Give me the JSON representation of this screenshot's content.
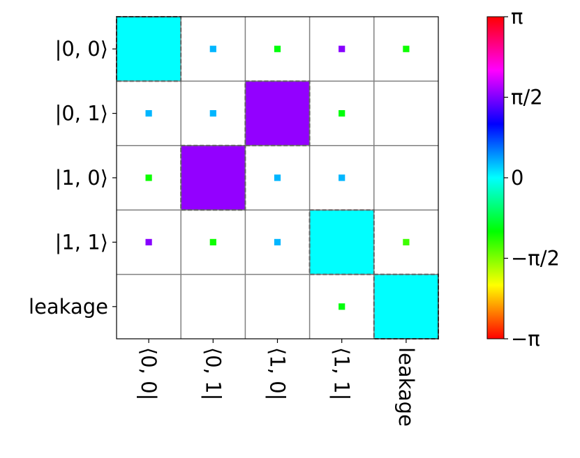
{
  "chart_data": {
    "type": "heatmap",
    "title": "",
    "xlabel": "",
    "ylabel": "",
    "row_labels": [
      "|0, 0⟩",
      "|0, 1⟩",
      "|1, 0⟩",
      "|1, 1⟩",
      "leakage"
    ],
    "col_labels": [
      "⟨0, 0|",
      "⟨0, 1|",
      "⟨1, 0|",
      "⟨1, 1|",
      "leakage"
    ],
    "magnitude": [
      [
        1.0,
        0.01,
        0.01,
        0.01,
        0.01
      ],
      [
        0.01,
        0.01,
        1.0,
        0.01,
        0.0
      ],
      [
        0.01,
        1.0,
        0.01,
        0.01,
        0.0
      ],
      [
        0.01,
        0.01,
        0.01,
        1.0,
        0.01
      ],
      [
        0.0,
        0.0,
        0.0,
        0.01,
        1.0
      ]
    ],
    "phase": [
      [
        0.0,
        0.3,
        -1.0,
        1.6,
        -1.1
      ],
      [
        0.3,
        0.3,
        1.65,
        -1.0,
        0.0
      ],
      [
        -1.1,
        1.65,
        0.3,
        0.3,
        0.0
      ],
      [
        1.6,
        -1.1,
        0.3,
        0.0,
        -1.3
      ],
      [
        0.0,
        0.0,
        0.0,
        -1.0,
        0.0
      ]
    ],
    "highlighted_cells": [
      [
        0,
        0
      ],
      [
        1,
        2
      ],
      [
        2,
        1
      ],
      [
        3,
        3
      ],
      [
        4,
        4
      ]
    ],
    "colorbar": {
      "colormap": "hsv",
      "vmin": -3.14159,
      "vmax": 3.14159,
      "tick_values": [
        3.14159,
        1.5708,
        0,
        -1.5708,
        -3.14159
      ],
      "tick_labels": [
        "π",
        "π/2",
        "0",
        "−π/2",
        "−π"
      ]
    },
    "grid": true
  }
}
